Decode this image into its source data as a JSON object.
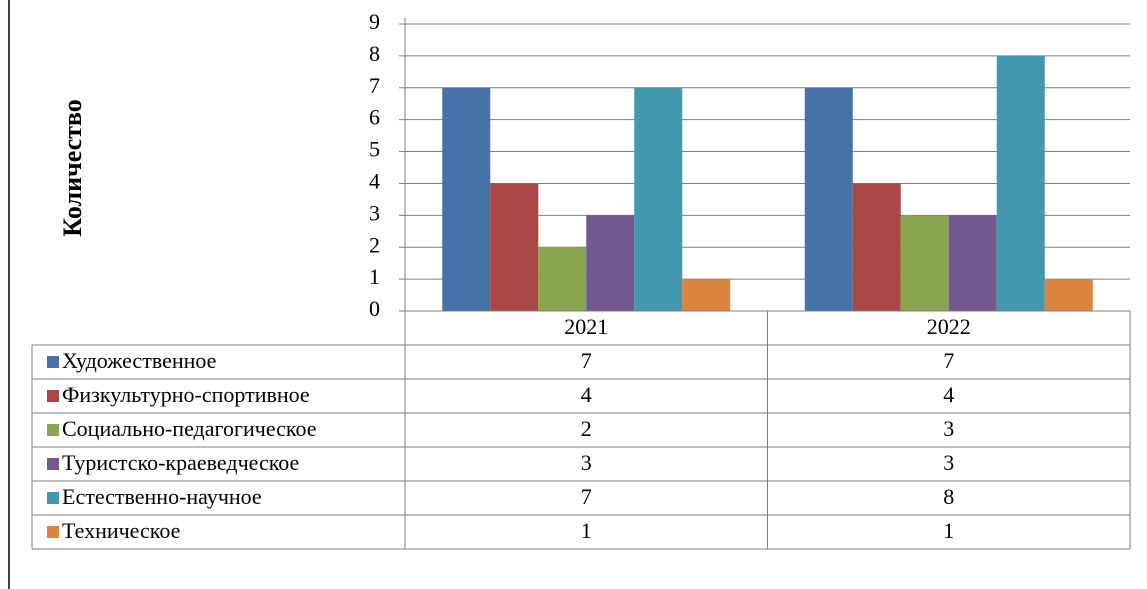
{
  "chart_data": {
    "type": "bar",
    "title": "",
    "xlabel": "",
    "ylabel": "Количество",
    "ylim": [
      0,
      9
    ],
    "y_ticks": [
      "0",
      "1",
      "2",
      "3",
      "4",
      "5",
      "6",
      "7",
      "8",
      "9"
    ],
    "grid": true,
    "legend_placement": "data-table-bottom",
    "categories": [
      "2021",
      "2022"
    ],
    "series": [
      {
        "name": "Художественное",
        "values": [
          7,
          7
        ],
        "color": "#4572A7"
      },
      {
        "name": "Физкультурно-спортивное",
        "values": [
          4,
          4
        ],
        "color": "#AA4643"
      },
      {
        "name": "Социально-педагогическое",
        "values": [
          2,
          3
        ],
        "color": "#89A54E"
      },
      {
        "name": "Туристско-краеведческое",
        "values": [
          3,
          3
        ],
        "color": "#71588F"
      },
      {
        "name": "Естественно-научное",
        "values": [
          7,
          8
        ],
        "color": "#4198AF"
      },
      {
        "name": "Техническое",
        "values": [
          1,
          1
        ],
        "color": "#DB843D"
      }
    ]
  }
}
